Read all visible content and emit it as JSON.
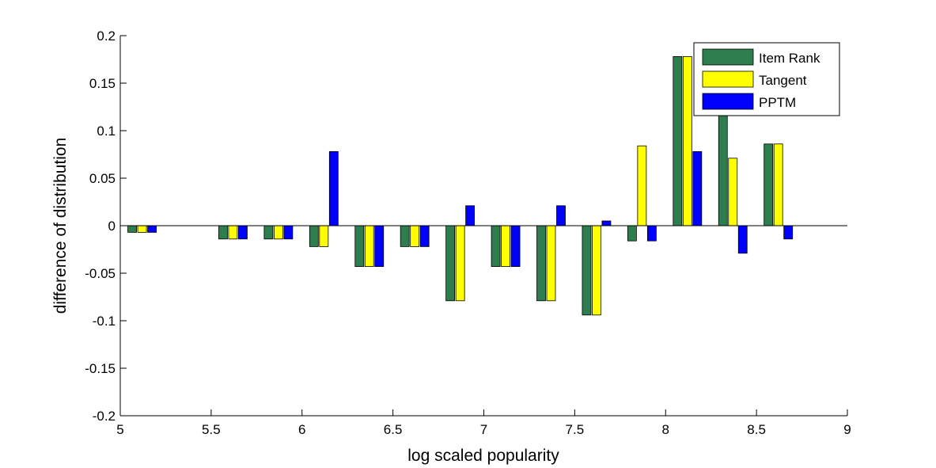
{
  "chart_data": {
    "type": "bar",
    "title": "",
    "xlabel": "log scaled popularity",
    "ylabel": "difference of distribution",
    "xlim": [
      5,
      9
    ],
    "ylim": [
      -0.2,
      0.2
    ],
    "x_ticks": [
      "5",
      "5.5",
      "6",
      "6.5",
      "7",
      "7.5",
      "8",
      "8.5",
      "9"
    ],
    "y_ticks": [
      "-0.2",
      "-0.15",
      "-0.1",
      "-0.05",
      "0",
      "0.05",
      "0.1",
      "0.15",
      "0.2"
    ],
    "grid": false,
    "legend_position": "top-right",
    "x": [
      5.12,
      5.62,
      5.87,
      6.12,
      6.37,
      6.62,
      6.87,
      7.12,
      7.37,
      7.62,
      7.87,
      8.12,
      8.37,
      8.62
    ],
    "series": [
      {
        "name": "Item Rank",
        "color": "#2e7d4f",
        "values": [
          -0.007,
          -0.014,
          -0.014,
          -0.022,
          -0.043,
          -0.022,
          -0.079,
          -0.043,
          -0.079,
          -0.094,
          -0.016,
          0.178,
          0.12,
          0.086
        ]
      },
      {
        "name": "Tangent",
        "color": "#ffff00",
        "values": [
          -0.007,
          -0.014,
          -0.014,
          -0.022,
          -0.043,
          -0.022,
          -0.079,
          -0.043,
          -0.079,
          -0.094,
          0.084,
          0.178,
          0.071,
          0.086
        ]
      },
      {
        "name": "PPTM",
        "color": "#0000ff",
        "values": [
          -0.007,
          -0.014,
          -0.014,
          0.078,
          -0.043,
          -0.022,
          0.021,
          -0.043,
          0.021,
          0.005,
          -0.016,
          0.078,
          -0.029,
          -0.014
        ]
      }
    ]
  }
}
